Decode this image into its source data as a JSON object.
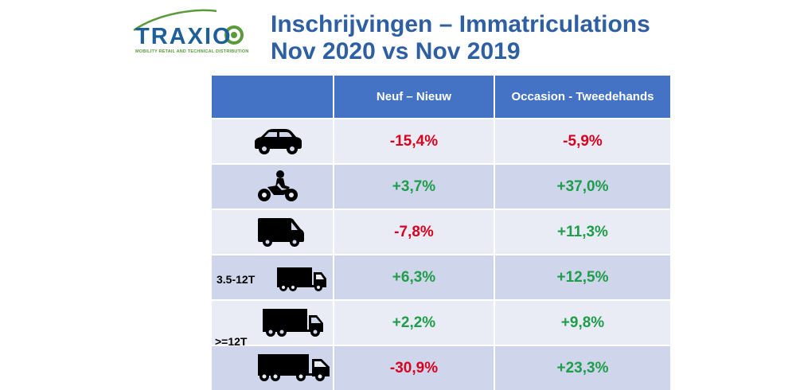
{
  "logo": {
    "word": "TRAXIO",
    "tagline": "MOBILITY RETAIL AND TECHNICAL DISTRIBUTION"
  },
  "title": {
    "line1": "Inschrijvingen – Immatriculations",
    "line2": "Nov 2020 vs Nov 2019"
  },
  "table": {
    "headers": [
      "",
      "Neuf – Nieuw",
      "Occasion - Tweedehands"
    ],
    "rows": [
      {
        "icon": "car-icon",
        "label": "",
        "new": "-15,4%",
        "used": "-5,9%"
      },
      {
        "icon": "motorcycle-icon",
        "label": "",
        "new": "+3,7%",
        "used": "+37,0%"
      },
      {
        "icon": "van-icon",
        "label": "",
        "new": "-7,8%",
        "used": "+11,3%"
      },
      {
        "icon": "small-truck-icon",
        "label": "3.5-12T",
        "new": "+6,3%",
        "used": "+12,5%"
      },
      {
        "icon": "large-truck-icon",
        "label": ">=12T",
        "new": "+2,2%",
        "used": "+9,8%"
      },
      {
        "icon": "semi-truck-icon",
        "label": "",
        "new": "-30,9%",
        "used": "+23,3%"
      }
    ]
  },
  "colors": {
    "header_bg": "#4472c4",
    "negative": "#d8001e",
    "positive": "#1e9d4a",
    "title": "#2e5fa3"
  }
}
